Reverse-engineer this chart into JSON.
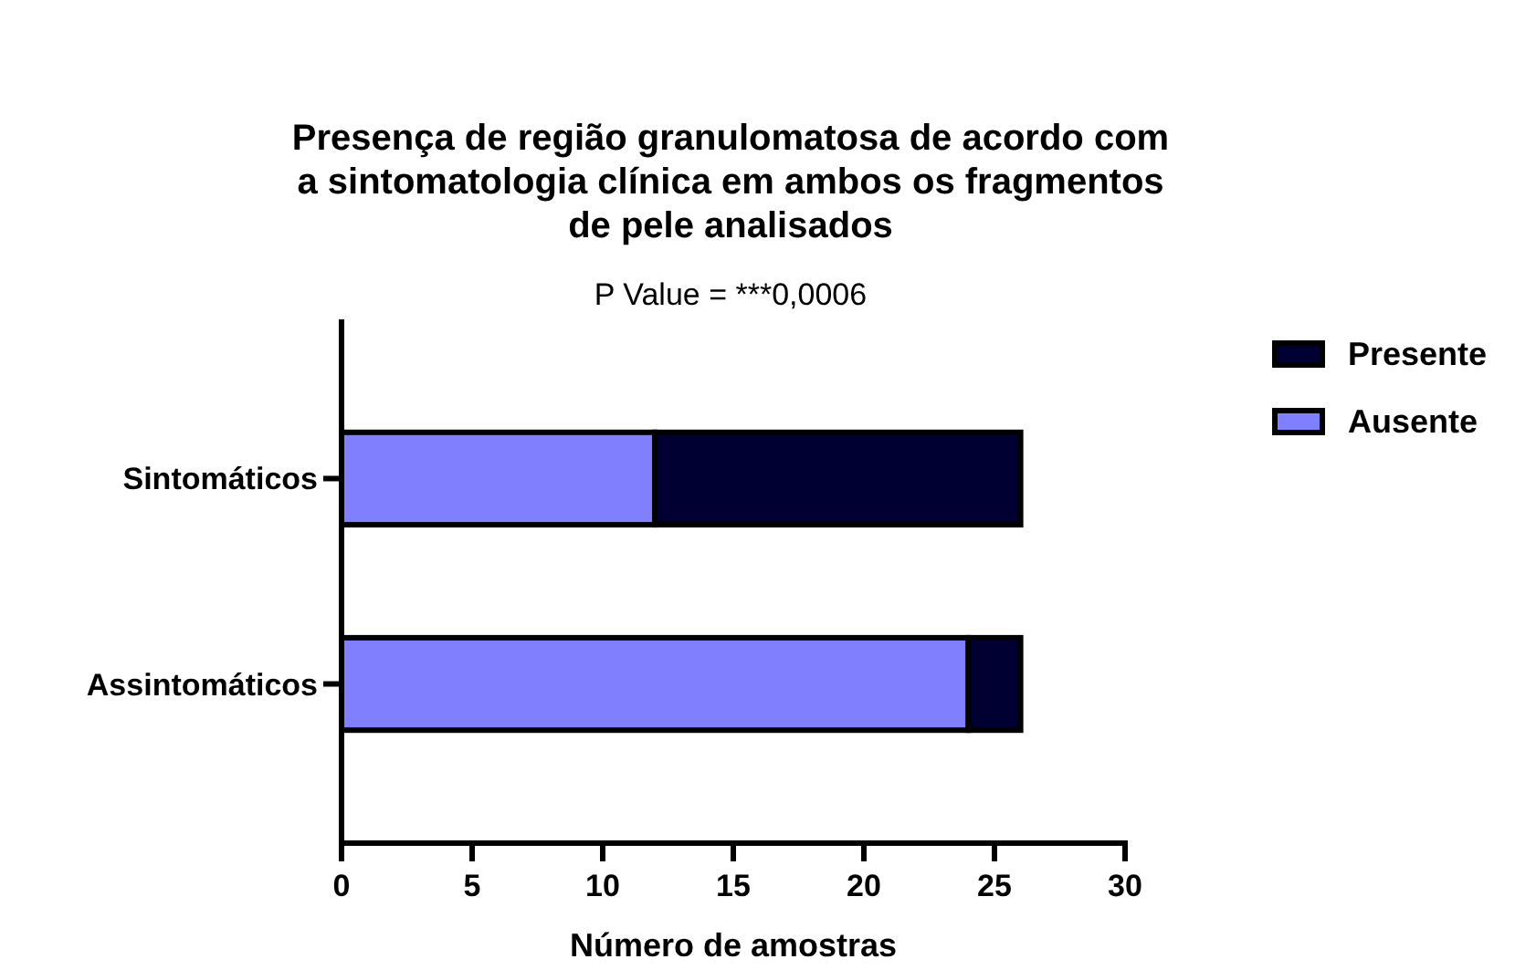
{
  "chart_data": {
    "type": "bar",
    "orientation": "horizontal",
    "stacked": true,
    "title": "Presença de região granulomatosa de acordo com a sintomatologia clínica em ambos os fragmentos de pele analisados",
    "subtitle": "P Value = ***0,0006",
    "xlabel": "Número de amostras",
    "categories": [
      "Sintomáticos",
      "Assintomáticos"
    ],
    "series": [
      {
        "name": "Ausente",
        "color": "#8080ff",
        "values": [
          12,
          24
        ]
      },
      {
        "name": "Presente",
        "color": "#000033",
        "values": [
          14,
          2
        ]
      }
    ],
    "xlim": [
      0,
      30
    ],
    "xticks": [
      0,
      5,
      10,
      15,
      20,
      25,
      30
    ],
    "grid": false,
    "legend": "top right"
  }
}
